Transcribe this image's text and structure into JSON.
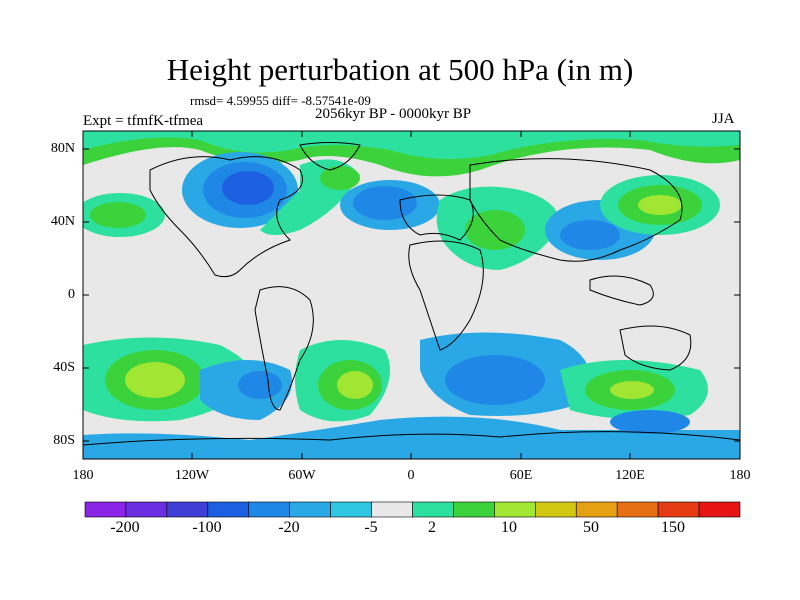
{
  "header": {
    "title": "Height perturbation at 500 hPa (in m)",
    "stats": "rmsd= 4.59955 diff= -8.57541e-09",
    "experiment": "Expt = tfmfK-tfmea",
    "period": "2056kyr BP - 0000kyr BP",
    "season": "JJA"
  },
  "axes": {
    "y_labels": [
      "80N",
      "40N",
      "0",
      "40S",
      "80S"
    ],
    "x_labels": [
      "180",
      "120W",
      "60W",
      "0",
      "60E",
      "120E",
      "180"
    ]
  },
  "colorbar": {
    "colors": [
      "#8a24e6",
      "#6b2ee0",
      "#3f3fd6",
      "#1c5fe0",
      "#1f87e6",
      "#2aa8e6",
      "#2ec6e0",
      "#e8e8e8",
      "#2ee0a0",
      "#3cd23c",
      "#a0e632",
      "#d2c814",
      "#e6a014",
      "#e66e14",
      "#e63c14",
      "#e61414"
    ],
    "labels": [
      "-200",
      "-100",
      "-20",
      "-5",
      "2",
      "10",
      "50",
      "150"
    ]
  },
  "map_legend": {
    "negative_strong": "#1c5fe0",
    "negative_medium": "#1f87e6",
    "negative_weak": "#2aa8e6",
    "neutral": "#e8e8e8",
    "positive_weak": "#2ee0a0",
    "positive_medium": "#3cd23c",
    "positive_strong": "#a0e632",
    "coast": "#000000"
  }
}
